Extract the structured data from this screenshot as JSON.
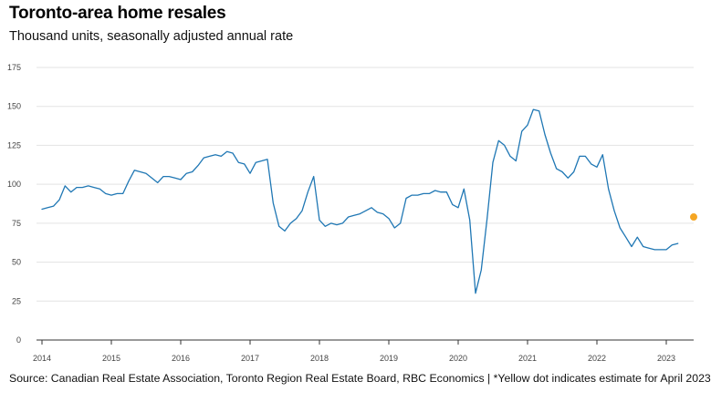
{
  "title": "Toronto-area home resales",
  "subtitle": "Thousand units, seasonally adjusted annual rate",
  "footer": "Source: Canadian Real Estate Association, Toronto Region Real Estate Board, RBC Economics | *Yellow dot indicates estimate for April 2023",
  "colors": {
    "line": "#1f77b4",
    "estimate": "#f5a623",
    "grid": "#e3e3e3",
    "axis": "#333333"
  },
  "chart_data": {
    "type": "line",
    "title": "Toronto-area home resales",
    "subtitle": "Thousand units, seasonally adjusted annual rate",
    "xlabel": "",
    "ylabel": "",
    "ylim": [
      0,
      175
    ],
    "xlim": [
      2014.0,
      2023.33
    ],
    "y_ticks": [
      0,
      25,
      50,
      75,
      100,
      125,
      150,
      175
    ],
    "x_ticks": [
      2014,
      2015,
      2016,
      2017,
      2018,
      2019,
      2020,
      2021,
      2022,
      2023
    ],
    "grid": "horizontal",
    "legend": "none",
    "series": [
      {
        "x": [
          "2014-01",
          "2014-02",
          "2014-03",
          "2014-04",
          "2014-05",
          "2014-06",
          "2014-07",
          "2014-08",
          "2014-09",
          "2014-10",
          "2014-11",
          "2014-12",
          "2015-01",
          "2015-02",
          "2015-03",
          "2015-04",
          "2015-05",
          "2015-06",
          "2015-07",
          "2015-08",
          "2015-09",
          "2015-10",
          "2015-11",
          "2015-12",
          "2016-01",
          "2016-02",
          "2016-03",
          "2016-04",
          "2016-05",
          "2016-06",
          "2016-07",
          "2016-08",
          "2016-09",
          "2016-10",
          "2016-11",
          "2016-12",
          "2017-01",
          "2017-02",
          "2017-03",
          "2017-04",
          "2017-05",
          "2017-06",
          "2017-07",
          "2017-08",
          "2017-09",
          "2017-10",
          "2017-11",
          "2017-12",
          "2018-01",
          "2018-02",
          "2018-03",
          "2018-04",
          "2018-05",
          "2018-06",
          "2018-07",
          "2018-08",
          "2018-09",
          "2018-10",
          "2018-11",
          "2018-12",
          "2019-01",
          "2019-02",
          "2019-03",
          "2019-04",
          "2019-05",
          "2019-06",
          "2019-07",
          "2019-08",
          "2019-09",
          "2019-10",
          "2019-11",
          "2019-12",
          "2020-01",
          "2020-02",
          "2020-03",
          "2020-04",
          "2020-05",
          "2020-06",
          "2020-07",
          "2020-08",
          "2020-09",
          "2020-10",
          "2020-11",
          "2020-12",
          "2021-01",
          "2021-02",
          "2021-03",
          "2021-04",
          "2021-05",
          "2021-06",
          "2021-07",
          "2021-08",
          "2021-09",
          "2021-10",
          "2021-11",
          "2021-12",
          "2022-01",
          "2022-02",
          "2022-03",
          "2022-04",
          "2022-05",
          "2022-06",
          "2022-07",
          "2022-08",
          "2022-09",
          "2022-10",
          "2022-11",
          "2022-12",
          "2023-01",
          "2023-02",
          "2023-03"
        ],
        "values": [
          84,
          85,
          86,
          90,
          99,
          95,
          98,
          98,
          99,
          98,
          97,
          94,
          93,
          94,
          94,
          102,
          109,
          108,
          107,
          104,
          101,
          105,
          105,
          104,
          103,
          107,
          108,
          112,
          117,
          118,
          119,
          118,
          121,
          120,
          114,
          113,
          107,
          114,
          115,
          116,
          88,
          73,
          70,
          75,
          78,
          83,
          95,
          105,
          77,
          73,
          75,
          74,
          75,
          79,
          80,
          81,
          83,
          85,
          82,
          81,
          78,
          72,
          75,
          91,
          93,
          93,
          94,
          94,
          96,
          95,
          95,
          87,
          85,
          97,
          77,
          30,
          45,
          78,
          114,
          128,
          125,
          118,
          115,
          134,
          138,
          148,
          147,
          132,
          120,
          110,
          108,
          104,
          108,
          118,
          118,
          113,
          111,
          119,
          97,
          83,
          72,
          66,
          60,
          66,
          60,
          59,
          58,
          58,
          58,
          61,
          62
        ]
      }
    ],
    "estimate": {
      "x": "2023-04",
      "value": 79
    }
  }
}
